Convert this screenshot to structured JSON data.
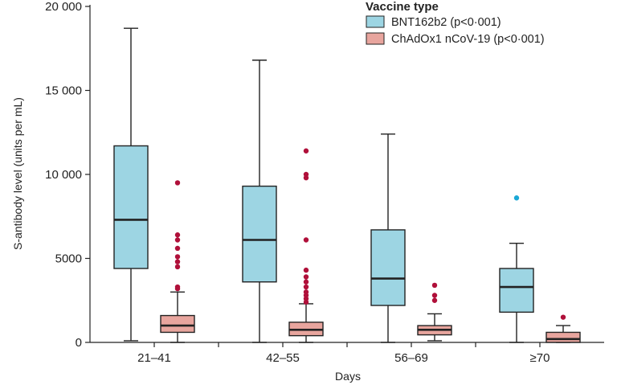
{
  "chart_data": {
    "type": "box",
    "xlabel": "Days",
    "ylabel": "S-antibody level (units per mL)",
    "ylim": [
      0,
      20000
    ],
    "yticks": [
      0,
      5000,
      10000,
      15000,
      20000
    ],
    "ytick_labels": [
      "0",
      "5000",
      "10 000",
      "15 000",
      "20 000"
    ],
    "categories": [
      "21–41",
      "42–55",
      "56–69",
      "≥70"
    ],
    "legend": {
      "title": "Vaccine type",
      "placement": "top-right",
      "entries": [
        "BNT162b2 (p<0·001)",
        "ChAdOx1 nCoV-19 (p<0·001)"
      ]
    },
    "series": [
      {
        "name": "BNT162b2",
        "legend_label": "BNT162b2 (p<0·001)",
        "fill": "#9dd5e3",
        "outlier_color": "#1ba8d6",
        "boxes": [
          {
            "category": "21–41",
            "min": 100,
            "q1": 4400,
            "median": 7300,
            "q3": 11700,
            "max": 18700,
            "outliers": []
          },
          {
            "category": "42–55",
            "min": 0,
            "q1": 3600,
            "median": 6100,
            "q3": 9300,
            "max": 16800,
            "outliers": []
          },
          {
            "category": "56–69",
            "min": 0,
            "q1": 2200,
            "median": 3800,
            "q3": 6700,
            "max": 12400,
            "outliers": []
          },
          {
            "category": "≥70",
            "min": 0,
            "q1": 1800,
            "median": 3300,
            "q3": 4400,
            "max": 5900,
            "outliers": [
              8600
            ]
          }
        ]
      },
      {
        "name": "ChAdOx1 nCoV-19",
        "legend_label": "ChAdOx1 nCoV-19 (p<0·001)",
        "fill": "#e8a59e",
        "outlier_color": "#b0103a",
        "boxes": [
          {
            "category": "21–41",
            "min": 0,
            "q1": 600,
            "median": 1000,
            "q3": 1600,
            "max": 3000,
            "outliers": [
              3200,
              3300,
              4500,
              4800,
              5100,
              5600,
              6100,
              6400,
              9500
            ]
          },
          {
            "category": "42–55",
            "min": 0,
            "q1": 400,
            "median": 750,
            "q3": 1200,
            "max": 2300,
            "outliers": [
              2400,
              2600,
              2800,
              3000,
              3300,
              3600,
              3900,
              4300,
              6100,
              9800,
              10000,
              11400
            ]
          },
          {
            "category": "56–69",
            "min": 100,
            "q1": 450,
            "median": 750,
            "q3": 1000,
            "max": 1700,
            "outliers": [
              2500,
              2800,
              3400
            ]
          },
          {
            "category": "≥70",
            "min": 0,
            "q1": 0,
            "median": 200,
            "q3": 600,
            "max": 1000,
            "outliers": [
              1500
            ]
          }
        ]
      }
    ]
  }
}
